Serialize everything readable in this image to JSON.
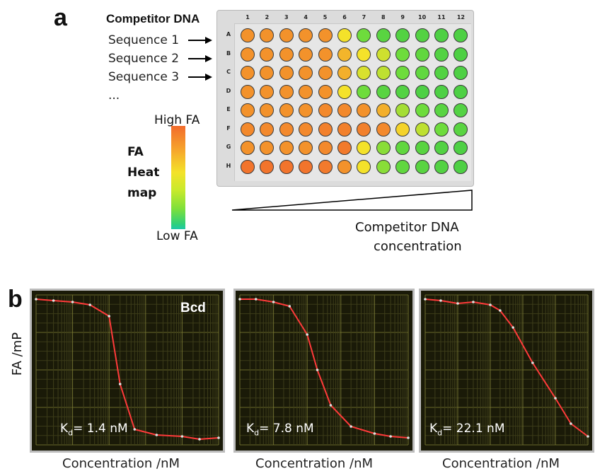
{
  "panel_a": {
    "letter": "a",
    "competitor_label": "Competitor DNA",
    "sequences": [
      "Sequence 1",
      "Sequence 2",
      "Sequence 3",
      "..."
    ],
    "columns": [
      "1",
      "2",
      "3",
      "4",
      "5",
      "6",
      "7",
      "8",
      "9",
      "10",
      "11",
      "12"
    ],
    "rows": [
      "A",
      "B",
      "C",
      "D",
      "E",
      "F",
      "G",
      "H"
    ],
    "heatmap_title": [
      "FA",
      "Heat",
      "map"
    ],
    "scale_high": "High FA",
    "scale_low": "Low FA",
    "gradient_label": [
      "Competitor DNA",
      "concentration"
    ],
    "colors": {
      "high": "#f26b2c",
      "mid": "#f4e22a",
      "low": "#1fc8a8"
    },
    "well_values": [
      [
        0.82,
        0.82,
        0.82,
        0.82,
        0.82,
        0.55,
        0.3,
        0.22,
        0.2,
        0.2,
        0.18,
        0.18
      ],
      [
        0.82,
        0.82,
        0.82,
        0.82,
        0.82,
        0.7,
        0.55,
        0.48,
        0.3,
        0.25,
        0.2,
        0.18
      ],
      [
        0.82,
        0.82,
        0.82,
        0.82,
        0.82,
        0.72,
        0.5,
        0.45,
        0.3,
        0.25,
        0.2,
        0.18
      ],
      [
        0.82,
        0.82,
        0.82,
        0.82,
        0.82,
        0.55,
        0.3,
        0.22,
        0.2,
        0.18,
        0.18,
        0.18
      ],
      [
        0.82,
        0.82,
        0.82,
        0.82,
        0.85,
        0.85,
        0.82,
        0.72,
        0.4,
        0.3,
        0.22,
        0.2
      ],
      [
        0.85,
        0.85,
        0.85,
        0.85,
        0.88,
        0.88,
        0.88,
        0.85,
        0.6,
        0.45,
        0.3,
        0.22
      ],
      [
        0.82,
        0.82,
        0.82,
        0.82,
        0.85,
        0.9,
        0.55,
        0.35,
        0.25,
        0.22,
        0.2,
        0.18
      ],
      [
        0.92,
        0.92,
        0.92,
        0.92,
        0.9,
        0.82,
        0.55,
        0.35,
        0.25,
        0.22,
        0.2,
        0.18
      ]
    ]
  },
  "panel_b": {
    "letter": "b",
    "ylabel": "FA /mP",
    "xlabel": "Concentration /nM",
    "charts": [
      {
        "tag": "Bcd",
        "kd_prefix": "K",
        "kd_sub": "d",
        "kd_value": "= 1.4 nM"
      },
      {
        "tag": "",
        "kd_prefix": "K",
        "kd_sub": "d",
        "kd_value": "= 7.8 nM"
      },
      {
        "tag": "",
        "kd_prefix": "K",
        "kd_sub": "d",
        "kd_value": "= 22.1 nM"
      }
    ]
  },
  "chart_data": [
    {
      "type": "line",
      "x": [
        0.01,
        0.03,
        0.1,
        0.3,
        1,
        2,
        5,
        20,
        100,
        300,
        1000
      ],
      "series": [
        {
          "values": [
            100,
            99,
            98,
            96,
            88,
            40,
            8,
            4,
            3,
            1,
            2
          ]
        }
      ]
    },
    {
      "type": "line",
      "x": [
        0.01,
        0.03,
        0.1,
        0.3,
        1,
        2,
        5,
        20,
        100,
        300,
        1000
      ],
      "series": [
        {
          "values": [
            100,
            100,
            98,
            95,
            75,
            50,
            25,
            10,
            5,
            3,
            2
          ]
        }
      ]
    },
    {
      "type": "line",
      "x": [
        0.01,
        0.03,
        0.1,
        0.3,
        1,
        2,
        5,
        20,
        100,
        300,
        1000
      ],
      "series": [
        {
          "values": [
            100,
            99,
            97,
            98,
            96,
            92,
            80,
            55,
            30,
            12,
            3
          ]
        }
      ]
    }
  ]
}
